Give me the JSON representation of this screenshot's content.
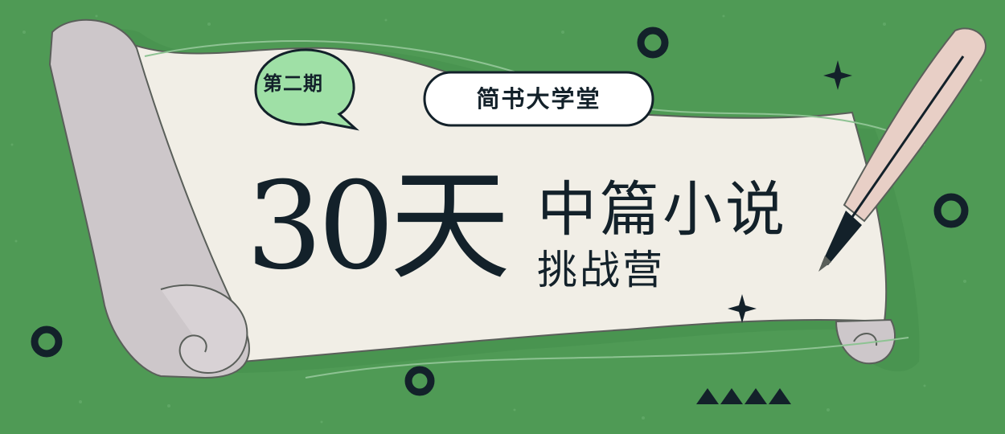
{
  "banner": {
    "issue_label": "第二期",
    "school_name": "简书大学堂",
    "duration": "30天",
    "title_main": "中篇小说",
    "title_sub": "挑战营"
  },
  "colors": {
    "background": "#4f9a55",
    "paper": "#f1eee6",
    "scroll_shadow": "#cdc7ca",
    "bubble": "#9fe0a6",
    "ink": "#13212a"
  },
  "icons": [
    "ring-icon",
    "sparkle-icon",
    "triangle-icon",
    "quill-pen-icon",
    "speech-bubble-icon"
  ]
}
